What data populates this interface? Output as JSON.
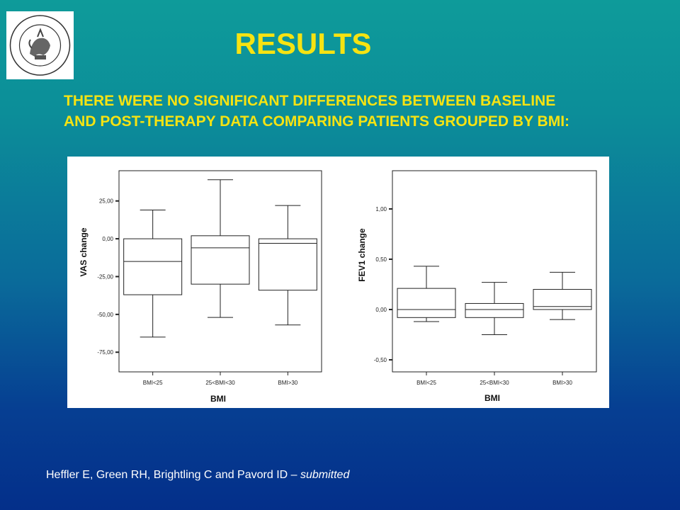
{
  "title": "RESULTS",
  "subtitle": {
    "line1": "THERE WERE NO SIGNIFICANT DIFFERENCES BETWEEN BASELINE",
    "line2": "AND POST-THERAPY DATA COMPARING PATIENTS GROUPED BY BMI:"
  },
  "citation": {
    "authors": "Heffler E, Green RH, Brightling C and Pavord ID – ",
    "status": "submitted"
  },
  "logo": {
    "text": "SIGIL·UNIVERS·AUGUSTAE·TAURINORUM"
  },
  "colors": {
    "background_top": "#0e9b9a",
    "background_bottom": "#042f8a",
    "title": "#f6e312",
    "panel": "#ffffff"
  },
  "chart_data": [
    {
      "type": "box",
      "xlabel": "BMI",
      "ylabel": "VAS change",
      "categories": [
        "BMI<25",
        "25<BMI<30",
        "BMI>30"
      ],
      "boxes": [
        {
          "whisker_low": -65,
          "q1": -37,
          "median": -15,
          "q3": 0,
          "whisker_high": 19
        },
        {
          "whisker_low": -52,
          "q1": -30,
          "median": -6,
          "q3": 2,
          "whisker_high": 39
        },
        {
          "whisker_low": -57,
          "q1": -34,
          "median": -3,
          "q3": 0,
          "whisker_high": 22
        }
      ],
      "ylim": [
        -88,
        45
      ],
      "yticks": [
        25,
        0,
        -25,
        -50,
        -75
      ],
      "ytick_labels": [
        "25,00",
        "0,00",
        "-25,00",
        "-50,00",
        "-75,00"
      ],
      "grid": false
    },
    {
      "type": "box",
      "xlabel": "BMI",
      "ylabel": "FEV1 change",
      "categories": [
        "BMI<25",
        "25<BMI<30",
        "BMI>30"
      ],
      "boxes": [
        {
          "whisker_low": -0.12,
          "q1": -0.08,
          "median": 0.0,
          "q3": 0.21,
          "whisker_high": 0.43
        },
        {
          "whisker_low": -0.25,
          "q1": -0.08,
          "median": 0.0,
          "q3": 0.06,
          "whisker_high": 0.27
        },
        {
          "whisker_low": -0.1,
          "q1": 0.0,
          "median": 0.03,
          "q3": 0.2,
          "whisker_high": 0.37
        }
      ],
      "ylim": [
        -0.62,
        1.38
      ],
      "yticks": [
        1.0,
        0.5,
        0.0,
        -0.5
      ],
      "ytick_labels": [
        "1,00",
        "0,50",
        "0,00",
        "-0,50"
      ],
      "grid": false
    }
  ]
}
